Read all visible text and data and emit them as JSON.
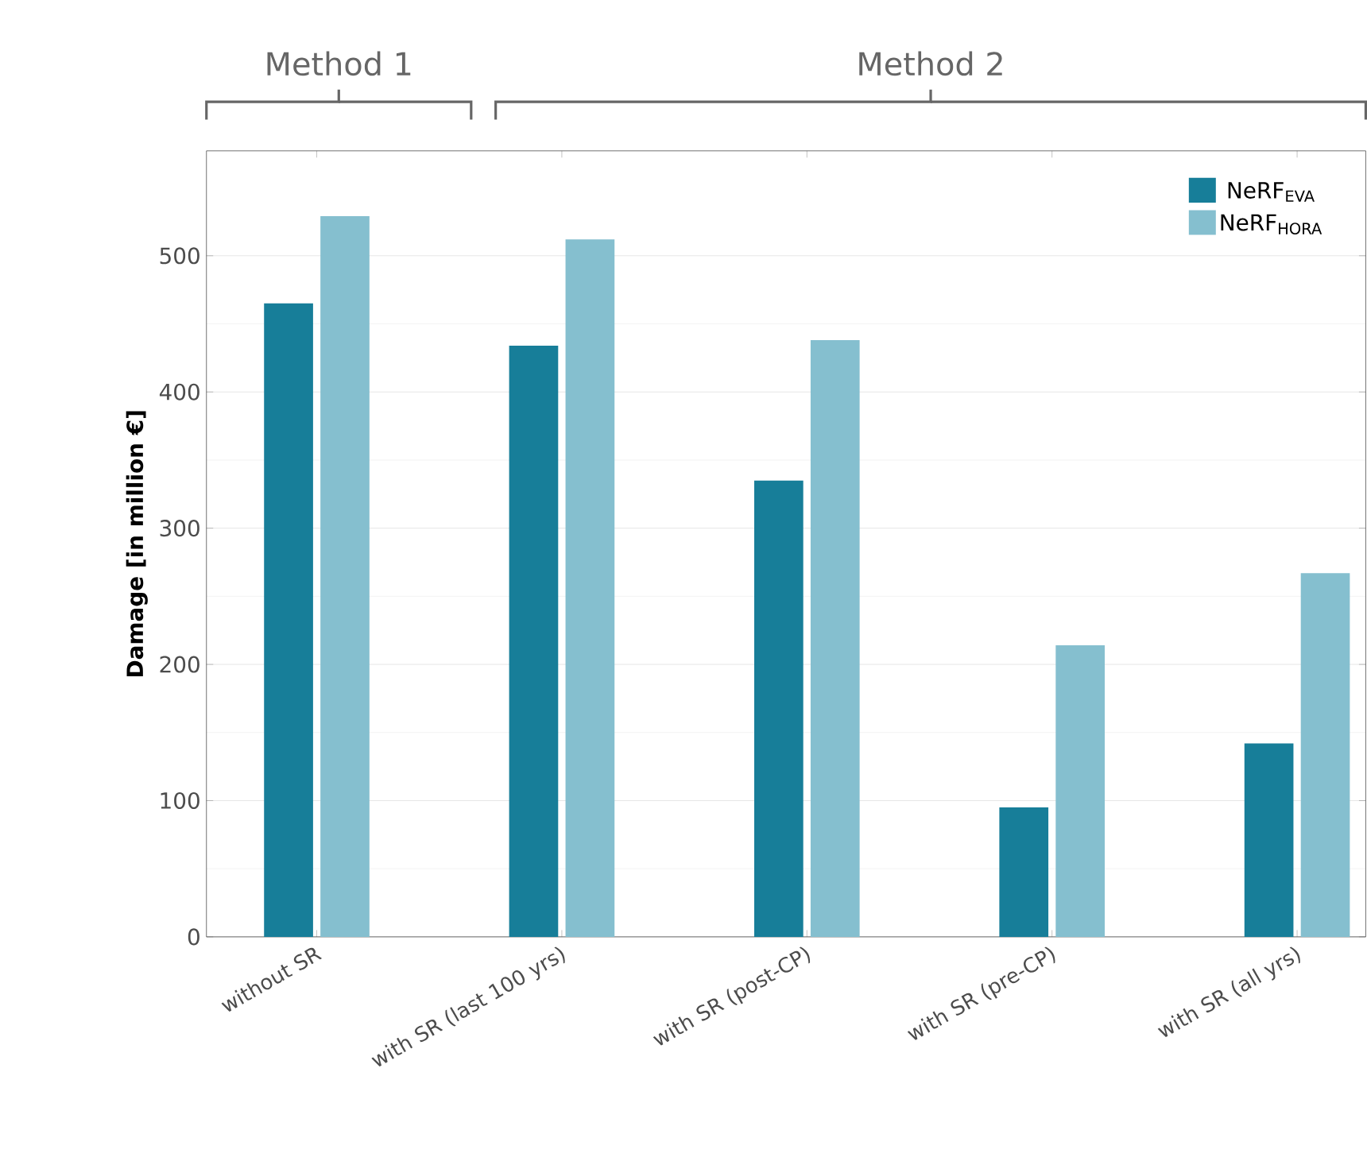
{
  "chart_data": {
    "type": "bar",
    "ylabel": "Damage [in million €]",
    "categories": [
      "without SR",
      "with SR (last 100 yrs)",
      "with SR (post-CP)",
      "with SR (pre-CP)",
      "with SR (all yrs)"
    ],
    "series": [
      {
        "name": "NeRF$_{EVA}$",
        "color": "#177e99",
        "values": [
          465,
          434,
          335,
          95,
          142
        ]
      },
      {
        "name": "NeRF$_{HORA}$",
        "color": "#85bfcf",
        "values": [
          529,
          512,
          438,
          214,
          267
        ]
      }
    ],
    "ylim": [
      0,
      577
    ],
    "yticks": [
      0,
      100,
      200,
      300,
      400,
      500
    ],
    "grid": "y",
    "legend": "top right",
    "annotations": [
      "Method 1",
      "Method 2"
    ]
  }
}
